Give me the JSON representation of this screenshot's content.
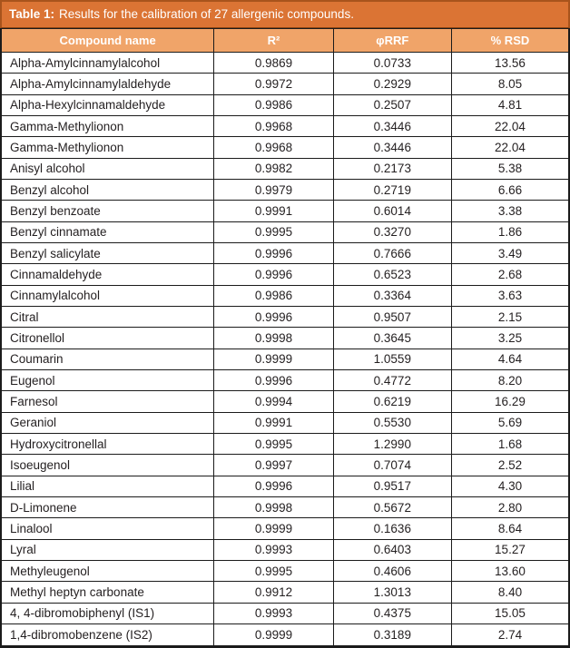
{
  "caption": {
    "label": "Table 1:",
    "text": "Results for the calibration of 27 allergenic compounds."
  },
  "colors": {
    "titlebar_bg": "#db7434",
    "titlebar_border": "#a8541c",
    "header_bg": "#f0a469",
    "header_text": "#ffffff",
    "grid_border": "#1b1b1b",
    "row_text": "#231f20"
  },
  "table": {
    "headers": [
      "Compound name",
      "R²",
      "φRRF",
      "% RSD"
    ],
    "rows": [
      {
        "name": "Alpha-Amylcinnamylalcohol",
        "r2": "0.9869",
        "rrf": "0.0733",
        "rsd": "13.56"
      },
      {
        "name": "Alpha-Amylcinnamylaldehyde",
        "r2": "0.9972",
        "rrf": "0.2929",
        "rsd": "8.05"
      },
      {
        "name": "Alpha-Hexylcinnamaldehyde",
        "r2": "0.9986",
        "rrf": "0.2507",
        "rsd": "4.81"
      },
      {
        "name": "Gamma-Methylionon",
        "r2": "0.9968",
        "rrf": "0.3446",
        "rsd": "22.04"
      },
      {
        "name": "Gamma-Methylionon",
        "r2": "0.9968",
        "rrf": "0.3446",
        "rsd": "22.04"
      },
      {
        "name": "Anisyl alcohol",
        "r2": "0.9982",
        "rrf": "0.2173",
        "rsd": "5.38"
      },
      {
        "name": "Benzyl alcohol",
        "r2": "0.9979",
        "rrf": "0.2719",
        "rsd": "6.66"
      },
      {
        "name": "Benzyl benzoate",
        "r2": "0.9991",
        "rrf": "0.6014",
        "rsd": "3.38"
      },
      {
        "name": "Benzyl cinnamate",
        "r2": "0.9995",
        "rrf": "0.3270",
        "rsd": "1.86"
      },
      {
        "name": "Benzyl salicylate",
        "r2": "0.9996",
        "rrf": "0.7666",
        "rsd": "3.49"
      },
      {
        "name": "Cinnamaldehyde",
        "r2": "0.9996",
        "rrf": "0.6523",
        "rsd": "2.68"
      },
      {
        "name": "Cinnamylalcohol",
        "r2": "0.9986",
        "rrf": "0.3364",
        "rsd": "3.63"
      },
      {
        "name": "Citral",
        "r2": "0.9996",
        "rrf": "0.9507",
        "rsd": "2.15"
      },
      {
        "name": "Citronellol",
        "r2": "0.9998",
        "rrf": "0.3645",
        "rsd": "3.25"
      },
      {
        "name": "Coumarin",
        "r2": "0.9999",
        "rrf": "1.0559",
        "rsd": "4.64"
      },
      {
        "name": "Eugenol",
        "r2": "0.9996",
        "rrf": "0.4772",
        "rsd": "8.20"
      },
      {
        "name": "Farnesol",
        "r2": "0.9994",
        "rrf": "0.6219",
        "rsd": "16.29"
      },
      {
        "name": "Geraniol",
        "r2": "0.9991",
        "rrf": "0.5530",
        "rsd": "5.69"
      },
      {
        "name": "Hydroxycitronellal",
        "r2": "0.9995",
        "rrf": "1.2990",
        "rsd": "1.68"
      },
      {
        "name": "Isoeugenol",
        "r2": "0.9997",
        "rrf": "0.7074",
        "rsd": "2.52"
      },
      {
        "name": "Lilial",
        "r2": "0.9996",
        "rrf": "0.9517",
        "rsd": "4.30"
      },
      {
        "name": "D-Limonene",
        "r2": "0.9998",
        "rrf": "0.5672",
        "rsd": "2.80"
      },
      {
        "name": "Linalool",
        "r2": "0.9999",
        "rrf": "0.1636",
        "rsd": "8.64"
      },
      {
        "name": "Lyral",
        "r2": "0.9993",
        "rrf": "0.6403",
        "rsd": "15.27"
      },
      {
        "name": "Methyleugenol",
        "r2": "0.9995",
        "rrf": "0.4606",
        "rsd": "13.60"
      },
      {
        "name": "Methyl heptyn carbonate",
        "r2": "0.9912",
        "rrf": "1.3013",
        "rsd": "8.40"
      },
      {
        "name": "4, 4-dibromobiphenyl (IS1)",
        "r2": "0.9993",
        "rrf": "0.4375",
        "rsd": "15.05"
      },
      {
        "name": "1,4-dibromobenzene (IS2)",
        "r2": "0.9999",
        "rrf": "0.3189",
        "rsd": "2.74"
      }
    ]
  }
}
